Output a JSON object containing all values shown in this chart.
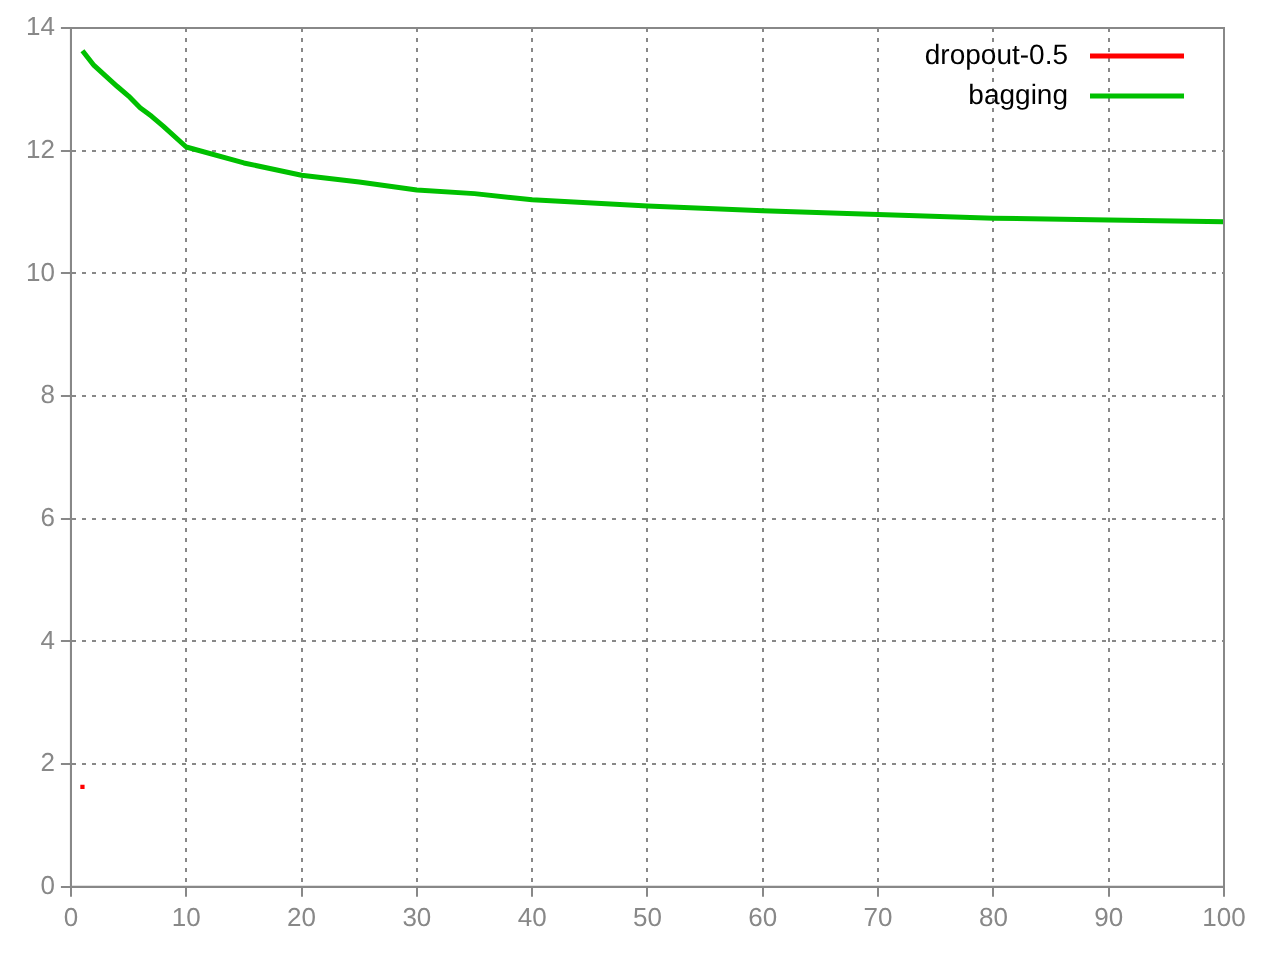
{
  "chart_data": {
    "type": "line",
    "xlim": [
      0,
      100
    ],
    "xticks": [
      0,
      10,
      20,
      30,
      40,
      50,
      60,
      70,
      80,
      90,
      100
    ],
    "ylim": [
      0,
      14
    ],
    "yticks": [
      0,
      2,
      4,
      6,
      8,
      10,
      12,
      14
    ],
    "grid": true,
    "legend": "top right",
    "series": [
      {
        "name": "dropout-0.5",
        "color": "#ff0000",
        "marker": "square",
        "x": [
          1
        ],
        "values": [
          1.63
        ]
      },
      {
        "name": "bagging",
        "color": "#00c000",
        "marker": "none",
        "x": [
          1,
          2,
          3,
          4,
          5,
          6,
          7,
          8,
          10,
          15,
          20,
          25,
          30,
          35,
          40,
          50,
          60,
          70,
          80,
          90,
          100
        ],
        "values": [
          13.63,
          13.39,
          13.22,
          13.05,
          12.89,
          12.7,
          12.56,
          12.4,
          12.06,
          11.8,
          11.6,
          11.49,
          11.36,
          11.3,
          11.2,
          11.1,
          11.02,
          10.96,
          10.9,
          10.87,
          10.84
        ]
      }
    ]
  }
}
